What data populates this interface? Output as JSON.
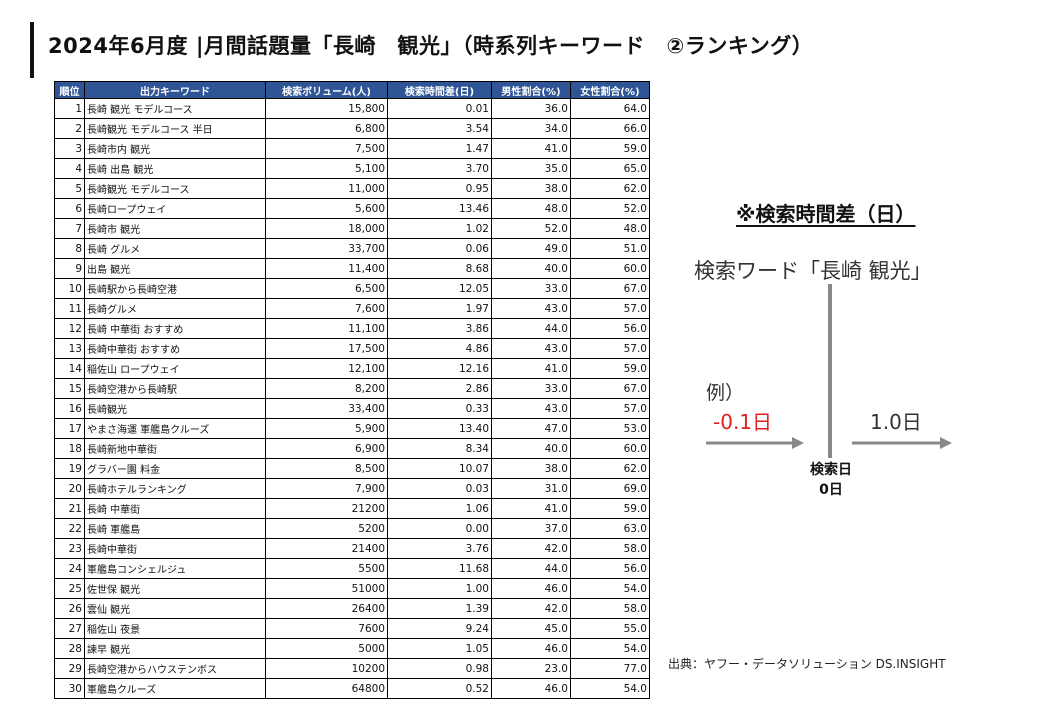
{
  "title": "2024年6月度 |月間話題量「長崎　観光」（時系列キーワード　②ランキング）",
  "table": {
    "headers": [
      "順位",
      "出力キーワード",
      "検索ボリューム(人)",
      "検索時間差(日)",
      "男性割合(%)",
      "女性割合(%)"
    ],
    "rows": [
      [
        "1",
        "長崎 観光 モデルコース",
        "15,800",
        "0.01",
        "36.0",
        "64.0"
      ],
      [
        "2",
        "長崎観光 モデルコース 半日",
        "6,800",
        "3.54",
        "34.0",
        "66.0"
      ],
      [
        "3",
        "長崎市内 観光",
        "7,500",
        "1.47",
        "41.0",
        "59.0"
      ],
      [
        "4",
        "長崎 出島 観光",
        "5,100",
        "3.70",
        "35.0",
        "65.0"
      ],
      [
        "5",
        "長崎観光 モデルコース",
        "11,000",
        "0.95",
        "38.0",
        "62.0"
      ],
      [
        "6",
        "長崎ロープウェイ",
        "5,600",
        "13.46",
        "48.0",
        "52.0"
      ],
      [
        "7",
        "長崎市 観光",
        "18,000",
        "1.02",
        "52.0",
        "48.0"
      ],
      [
        "8",
        "長崎 グルメ",
        "33,700",
        "0.06",
        "49.0",
        "51.0"
      ],
      [
        "9",
        "出島 観光",
        "11,400",
        "8.68",
        "40.0",
        "60.0"
      ],
      [
        "10",
        "長崎駅から長崎空港",
        "6,500",
        "12.05",
        "33.0",
        "67.0"
      ],
      [
        "11",
        "長崎グルメ",
        "7,600",
        "1.97",
        "43.0",
        "57.0"
      ],
      [
        "12",
        "長崎 中華街 おすすめ",
        "11,100",
        "3.86",
        "44.0",
        "56.0"
      ],
      [
        "13",
        "長崎中華街 おすすめ",
        "17,500",
        "4.86",
        "43.0",
        "57.0"
      ],
      [
        "14",
        "稲佐山 ロープウェイ",
        "12,100",
        "12.16",
        "41.0",
        "59.0"
      ],
      [
        "15",
        "長崎空港から長崎駅",
        "8,200",
        "2.86",
        "33.0",
        "67.0"
      ],
      [
        "16",
        "長崎観光",
        "33,400",
        "0.33",
        "43.0",
        "57.0"
      ],
      [
        "17",
        "やまさ海運 軍艦島クルーズ",
        "5,900",
        "13.40",
        "47.0",
        "53.0"
      ],
      [
        "18",
        "長崎新地中華街",
        "6,900",
        "8.34",
        "40.0",
        "60.0"
      ],
      [
        "19",
        "グラバー園 料金",
        "8,500",
        "10.07",
        "38.0",
        "62.0"
      ],
      [
        "20",
        "長崎ホテルランキング",
        "7,900",
        "0.03",
        "31.0",
        "69.0"
      ],
      [
        "21",
        "長崎 中華街",
        "21200",
        "1.06",
        "41.0",
        "59.0"
      ],
      [
        "22",
        "長崎 軍艦島",
        "5200",
        "0.00",
        "37.0",
        "63.0"
      ],
      [
        "23",
        "長崎中華街",
        "21400",
        "3.76",
        "42.0",
        "58.0"
      ],
      [
        "24",
        "軍艦島コンシェルジュ",
        "5500",
        "11.68",
        "44.0",
        "56.0"
      ],
      [
        "25",
        "佐世保 観光",
        "51000",
        "1.00",
        "46.0",
        "54.0"
      ],
      [
        "26",
        "雲仙 観光",
        "26400",
        "1.39",
        "42.0",
        "58.0"
      ],
      [
        "27",
        "稲佐山 夜景",
        "7600",
        "9.24",
        "45.0",
        "55.0"
      ],
      [
        "28",
        "諫早 観光",
        "5000",
        "1.05",
        "46.0",
        "54.0"
      ],
      [
        "29",
        "長崎空港からハウステンボス",
        "10200",
        "0.98",
        "23.0",
        "77.0"
      ],
      [
        "30",
        "軍艦島クルーズ",
        "64800",
        "0.52",
        "46.0",
        "54.0"
      ]
    ]
  },
  "explanation": {
    "heading": "※検索時間差（日）",
    "keyword": "検索ワード「長崎 観光」",
    "example_label": "例）",
    "negative_label": "-0.1日",
    "positive_label": "1.0日",
    "base_label_line1": "検索日",
    "base_label_line2": "0日"
  },
  "source": "出典：ヤフー・データソリューション DS.INSIGHT",
  "colors": {
    "header_bg": "#2f5597",
    "negative_text": "#e02020",
    "arrow": "#888888"
  }
}
